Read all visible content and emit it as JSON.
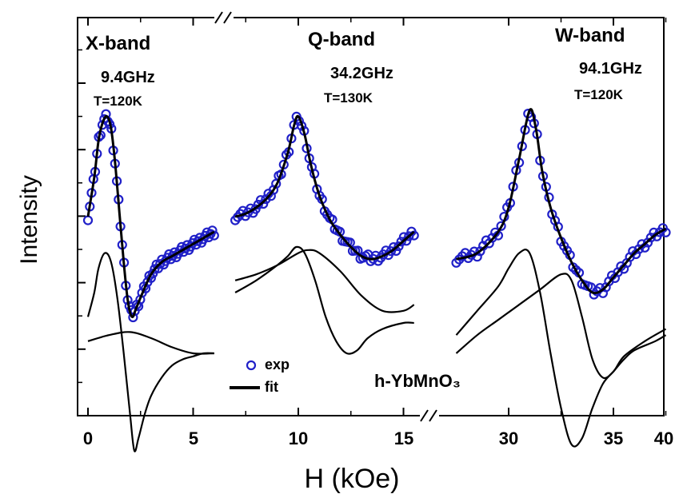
{
  "chart_data": {
    "type": "line",
    "xlabel": "H (kOe)",
    "ylabel": "Intensity",
    "x_ticks": [
      "0",
      "5",
      "10",
      "15",
      "30",
      "35",
      "40"
    ],
    "x_axis_break": "//",
    "legend": {
      "placement": "bottom-center",
      "entries": [
        {
          "label": "exp",
          "marker": "open-circle",
          "color": "#2020c8"
        },
        {
          "label": "fit",
          "marker": "line",
          "color": "#000000"
        }
      ]
    },
    "sample_label": "h-YbMnO₃",
    "colors": {
      "exp": "#2020c8",
      "fit": "#000000"
    },
    "panels": [
      {
        "band": "X-band",
        "frequency": "9.4GHz",
        "temperature": "T=120K",
        "xlim": [
          0,
          6
        ],
        "exp_fit": {
          "x": [
            0.0,
            0.3,
            0.5,
            0.7,
            0.9,
            1.1,
            1.3,
            1.5,
            1.7,
            1.9,
            2.1,
            2.3,
            2.6,
            3.0,
            3.5,
            4.0,
            4.5,
            5.0,
            5.5,
            6.0
          ],
          "y": [
            0.55,
            0.68,
            0.8,
            0.86,
            0.88,
            0.84,
            0.72,
            0.56,
            0.4,
            0.27,
            0.22,
            0.25,
            0.3,
            0.36,
            0.4,
            0.42,
            0.44,
            0.46,
            0.48,
            0.5
          ]
        },
        "components": [
          {
            "x": [
              0.0,
              0.3,
              0.5,
              0.8,
              1.1,
              1.4,
              1.7,
              2.0,
              2.2,
              2.4,
              2.7,
              3.0,
              3.5,
              4.0,
              4.5,
              5.0,
              5.5,
              6.0
            ],
            "y": [
              0.22,
              0.3,
              0.38,
              0.43,
              0.4,
              0.28,
              0.1,
              -0.1,
              -0.22,
              -0.18,
              -0.1,
              -0.04,
              0.02,
              0.06,
              0.08,
              0.09,
              0.1,
              0.1
            ]
          },
          {
            "x": [
              0.0,
              1.0,
              2.0,
              3.0,
              4.0,
              5.0,
              6.0
            ],
            "y": [
              0.14,
              0.16,
              0.17,
              0.15,
              0.12,
              0.1,
              0.1
            ]
          }
        ]
      },
      {
        "band": "Q-band",
        "frequency": "34.2GHz",
        "temperature": "T=130K",
        "xlim": [
          7,
          15.5
        ],
        "exp_fit": {
          "x": [
            7.0,
            7.5,
            8.0,
            8.5,
            9.0,
            9.5,
            9.8,
            10.0,
            10.3,
            10.6,
            11.0,
            11.5,
            12.0,
            12.5,
            13.0,
            13.5,
            14.0,
            14.5,
            15.0,
            15.5
          ],
          "y": [
            0.55,
            0.56,
            0.58,
            0.61,
            0.66,
            0.76,
            0.85,
            0.88,
            0.82,
            0.72,
            0.62,
            0.54,
            0.49,
            0.45,
            0.42,
            0.41,
            0.42,
            0.44,
            0.47,
            0.5
          ]
        },
        "components": [
          {
            "x": [
              7.0,
              8.0,
              9.0,
              9.5,
              9.9,
              10.3,
              10.8,
              11.3,
              11.8,
              12.3,
              12.8,
              13.3,
              14.0,
              15.0,
              15.5
            ],
            "y": [
              0.3,
              0.34,
              0.39,
              0.42,
              0.45,
              0.43,
              0.34,
              0.22,
              0.14,
              0.1,
              0.11,
              0.15,
              0.18,
              0.2,
              0.2
            ]
          },
          {
            "x": [
              7.0,
              8.0,
              9.0,
              10.0,
              10.5,
              11.0,
              12.0,
              13.0,
              14.0,
              15.0,
              15.5
            ],
            "y": [
              0.34,
              0.36,
              0.39,
              0.43,
              0.44,
              0.43,
              0.37,
              0.29,
              0.24,
              0.24,
              0.26
            ]
          }
        ]
      },
      {
        "band": "W-band",
        "frequency": "94.1GHz",
        "temperature": "T=120K",
        "xlim": [
          27.5,
          37.5
        ],
        "exp_fit": {
          "x": [
            27.5,
            28.5,
            29.5,
            30.0,
            30.5,
            31.0,
            31.3,
            31.6,
            32.0,
            32.5,
            33.0,
            33.5,
            34.0,
            34.5,
            35.0,
            35.5,
            36.0,
            36.5,
            37.0,
            37.5
          ],
          "y": [
            0.41,
            0.43,
            0.5,
            0.58,
            0.74,
            0.9,
            0.84,
            0.7,
            0.58,
            0.48,
            0.4,
            0.34,
            0.3,
            0.31,
            0.35,
            0.39,
            0.43,
            0.46,
            0.49,
            0.51
          ]
        },
        "components": [
          {
            "x": [
              27.5,
              28.5,
              29.5,
              30.0,
              30.5,
              31.0,
              31.5,
              32.0,
              32.5,
              33.0,
              33.5,
              34.0,
              34.5,
              35.0,
              35.5,
              36.0,
              37.0,
              37.5
            ],
            "y": [
              0.16,
              0.24,
              0.32,
              0.38,
              0.43,
              0.43,
              0.3,
              0.1,
              -0.08,
              -0.2,
              -0.18,
              -0.08,
              0.0,
              0.04,
              0.08,
              0.11,
              0.14,
              0.16
            ]
          },
          {
            "x": [
              27.5,
              28.5,
              29.5,
              30.5,
              31.5,
              32.5,
              33.0,
              33.5,
              34.0,
              34.5,
              35.0,
              35.5,
              36.5,
              37.5
            ],
            "y": [
              0.1,
              0.16,
              0.21,
              0.26,
              0.31,
              0.36,
              0.34,
              0.22,
              0.08,
              0.02,
              0.04,
              0.09,
              0.14,
              0.18
            ]
          }
        ]
      }
    ]
  }
}
